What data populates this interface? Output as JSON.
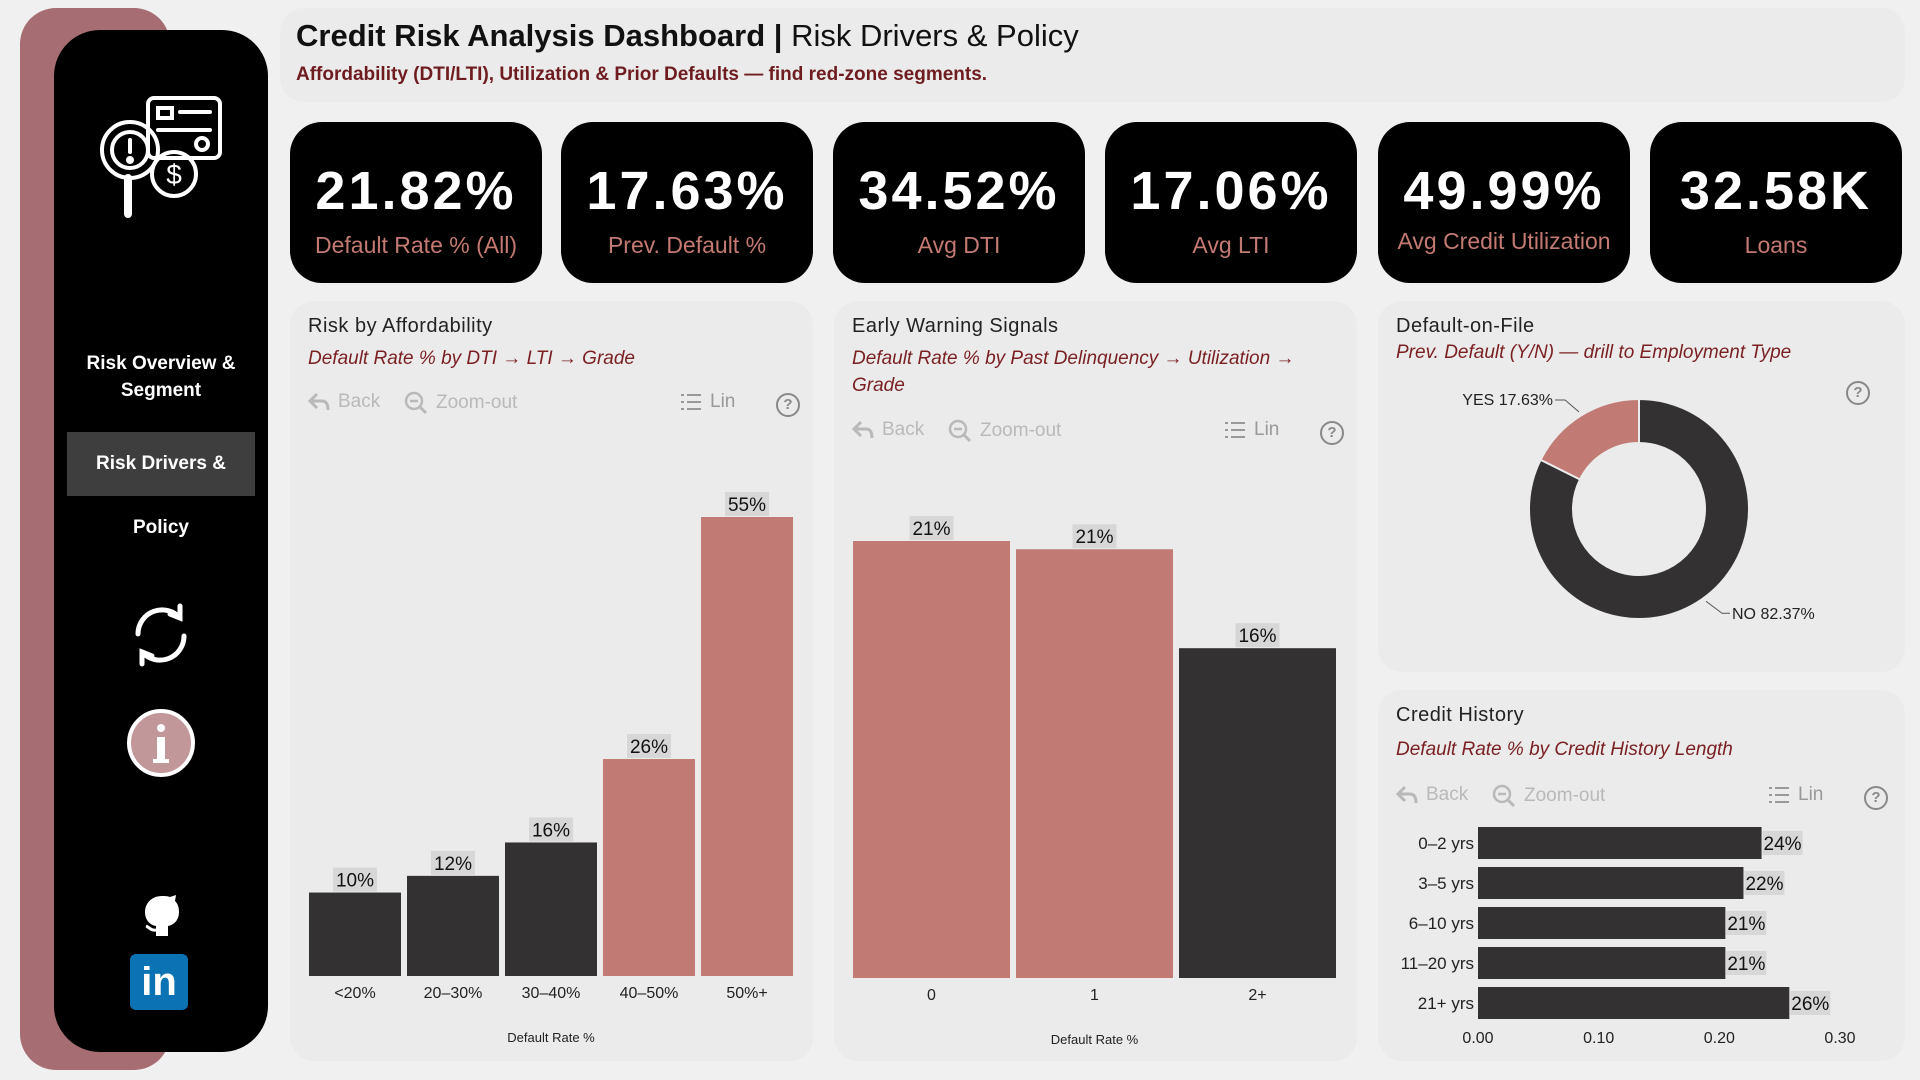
{
  "header": {
    "title_bold": "Credit Risk Analysis Dashboard |",
    "title_rest": "Risk Drivers & Policy",
    "subtitle": "Affordability (DTI/LTI), Utilization & Prior Defaults — find red-zone segments."
  },
  "sidebar": {
    "nav": [
      {
        "label": "Risk Overview & Segment"
      },
      {
        "label": "Risk Drivers & Policy"
      }
    ],
    "icons": [
      "refresh-icon",
      "info-icon",
      "github-icon",
      "linkedin-icon"
    ],
    "linkedin_text": "in"
  },
  "kpis": [
    {
      "value": "21.82%",
      "label": "Default Rate % (All)"
    },
    {
      "value": "17.63%",
      "label": "Prev. Default %"
    },
    {
      "value": "34.52%",
      "label": "Avg DTI"
    },
    {
      "value": "17.06%",
      "label": "Avg LTI"
    },
    {
      "value": "49.99%",
      "label": "Avg Credit Utilization"
    },
    {
      "value": "32.58K",
      "label": "Loans"
    }
  ],
  "toolbar": {
    "back": "Back",
    "zoom_out": "Zoom-out",
    "lin": "Lin",
    "help": "?"
  },
  "panels": {
    "affordability": {
      "title": "Risk by Affordability",
      "subtitle": "Default Rate % by DTI → LTI → Grade"
    },
    "warning": {
      "title": "Early Warning Signals",
      "subtitle_line1": "Default Rate % by Past Delinquency → Utilization →",
      "subtitle_line2": "Grade"
    },
    "default_on_file": {
      "title": "Default-on-File",
      "subtitle": "Prev. Default (Y/N) — drill to Employment Type"
    },
    "credit_history": {
      "title": "Credit History",
      "subtitle": "Default Rate % by Credit History Length"
    }
  },
  "colors": {
    "dark": "#333132",
    "rose": "#c27b74",
    "accent": "#a66e72",
    "maroon": "#6e1c1f"
  },
  "chart_data": [
    {
      "id": "affordability",
      "type": "bar",
      "categories": [
        "<20%",
        "20–30%",
        "30–40%",
        "40–50%",
        "50%+"
      ],
      "values": [
        10,
        12,
        16,
        26,
        55
      ],
      "labels": [
        "10%",
        "12%",
        "16%",
        "26%",
        "55%"
      ],
      "highlight": [
        false,
        false,
        false,
        true,
        true
      ],
      "xlabel": "Default Rate %",
      "ylim": [
        0,
        55
      ]
    },
    {
      "id": "warning",
      "type": "bar",
      "categories": [
        "0",
        "1",
        "2+"
      ],
      "values": [
        21.2,
        20.8,
        16
      ],
      "labels": [
        "21%",
        "21%",
        "16%"
      ],
      "highlight": [
        true,
        true,
        false
      ],
      "xlabel": "Default Rate %",
      "ylim": [
        0,
        21.2
      ]
    },
    {
      "id": "default_on_file",
      "type": "pie",
      "categories": [
        "YES",
        "NO"
      ],
      "values": [
        17.63,
        82.37
      ],
      "labels": [
        "YES 17.63%",
        "NO 82.37%"
      ]
    },
    {
      "id": "credit_history",
      "type": "bar",
      "orientation": "horizontal",
      "categories": [
        "0–2 yrs",
        "3–5 yrs",
        "6–10 yrs",
        "11–20 yrs",
        "21+ yrs"
      ],
      "values": [
        0.235,
        0.22,
        0.205,
        0.205,
        0.258
      ],
      "labels": [
        "24%",
        "22%",
        "21%",
        "21%",
        "26%"
      ],
      "xticks": [
        "0.00",
        "0.10",
        "0.20",
        "0.30"
      ],
      "xlim": [
        0,
        0.3
      ]
    }
  ]
}
